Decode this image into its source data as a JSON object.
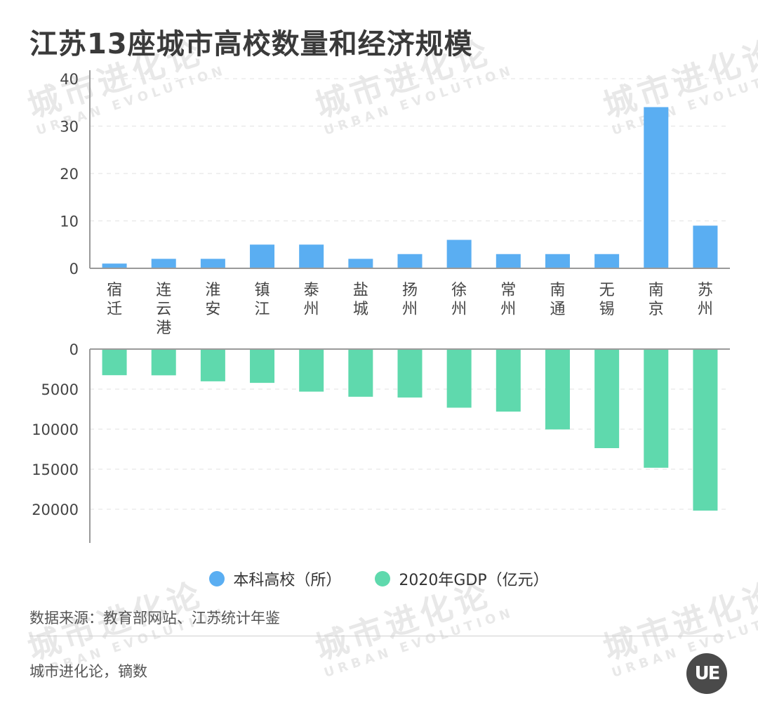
{
  "title": "江苏13座城市高校数量和经济规模",
  "watermark": {
    "cn": "城市进化论",
    "en": "URBAN EVOLUTION"
  },
  "logo_text": "UE",
  "source": "数据来源：教育部网站、江苏统计年鉴",
  "credit": "城市进化论，镝数",
  "colors": {
    "universities": "#5aaef2",
    "gdp": "#5fd9ad",
    "axis": "#9a9a9a",
    "grid": "#e2e2e2"
  },
  "chart_data": [
    {
      "type": "bar",
      "categories": [
        "宿迁",
        "连云港",
        "淮安",
        "镇江",
        "泰州",
        "盐城",
        "扬州",
        "徐州",
        "常州",
        "南通",
        "无锡",
        "南京",
        "苏州"
      ],
      "series": [
        {
          "name": "本科高校（所）",
          "values": [
            1,
            2,
            2,
            5,
            5,
            2,
            3,
            6,
            3,
            3,
            3,
            34,
            9
          ]
        }
      ],
      "yticks": [
        "0",
        "10",
        "20",
        "30",
        "40"
      ],
      "ylim": [
        0,
        40
      ],
      "grid": true
    },
    {
      "type": "bar",
      "orientation": "downward",
      "categories": [
        "宿迁",
        "连云港",
        "淮安",
        "镇江",
        "泰州",
        "盐城",
        "扬州",
        "徐州",
        "常州",
        "南通",
        "无锡",
        "南京",
        "苏州"
      ],
      "series": [
        {
          "name": "2020年GDP（亿元）",
          "values": [
            3262,
            3277,
            4025,
            4220,
            5313,
            5953,
            6048,
            7320,
            7805,
            10036,
            12370,
            14818,
            20171
          ]
        }
      ],
      "yticks": [
        "0",
        "5000",
        "10000",
        "15000",
        "20000"
      ],
      "ylim": [
        0,
        20000
      ],
      "grid": true
    }
  ],
  "legend": [
    {
      "label": "本科高校（所）",
      "color": "#5aaef2"
    },
    {
      "label": "2020年GDP（亿元）",
      "color": "#5fd9ad"
    }
  ]
}
